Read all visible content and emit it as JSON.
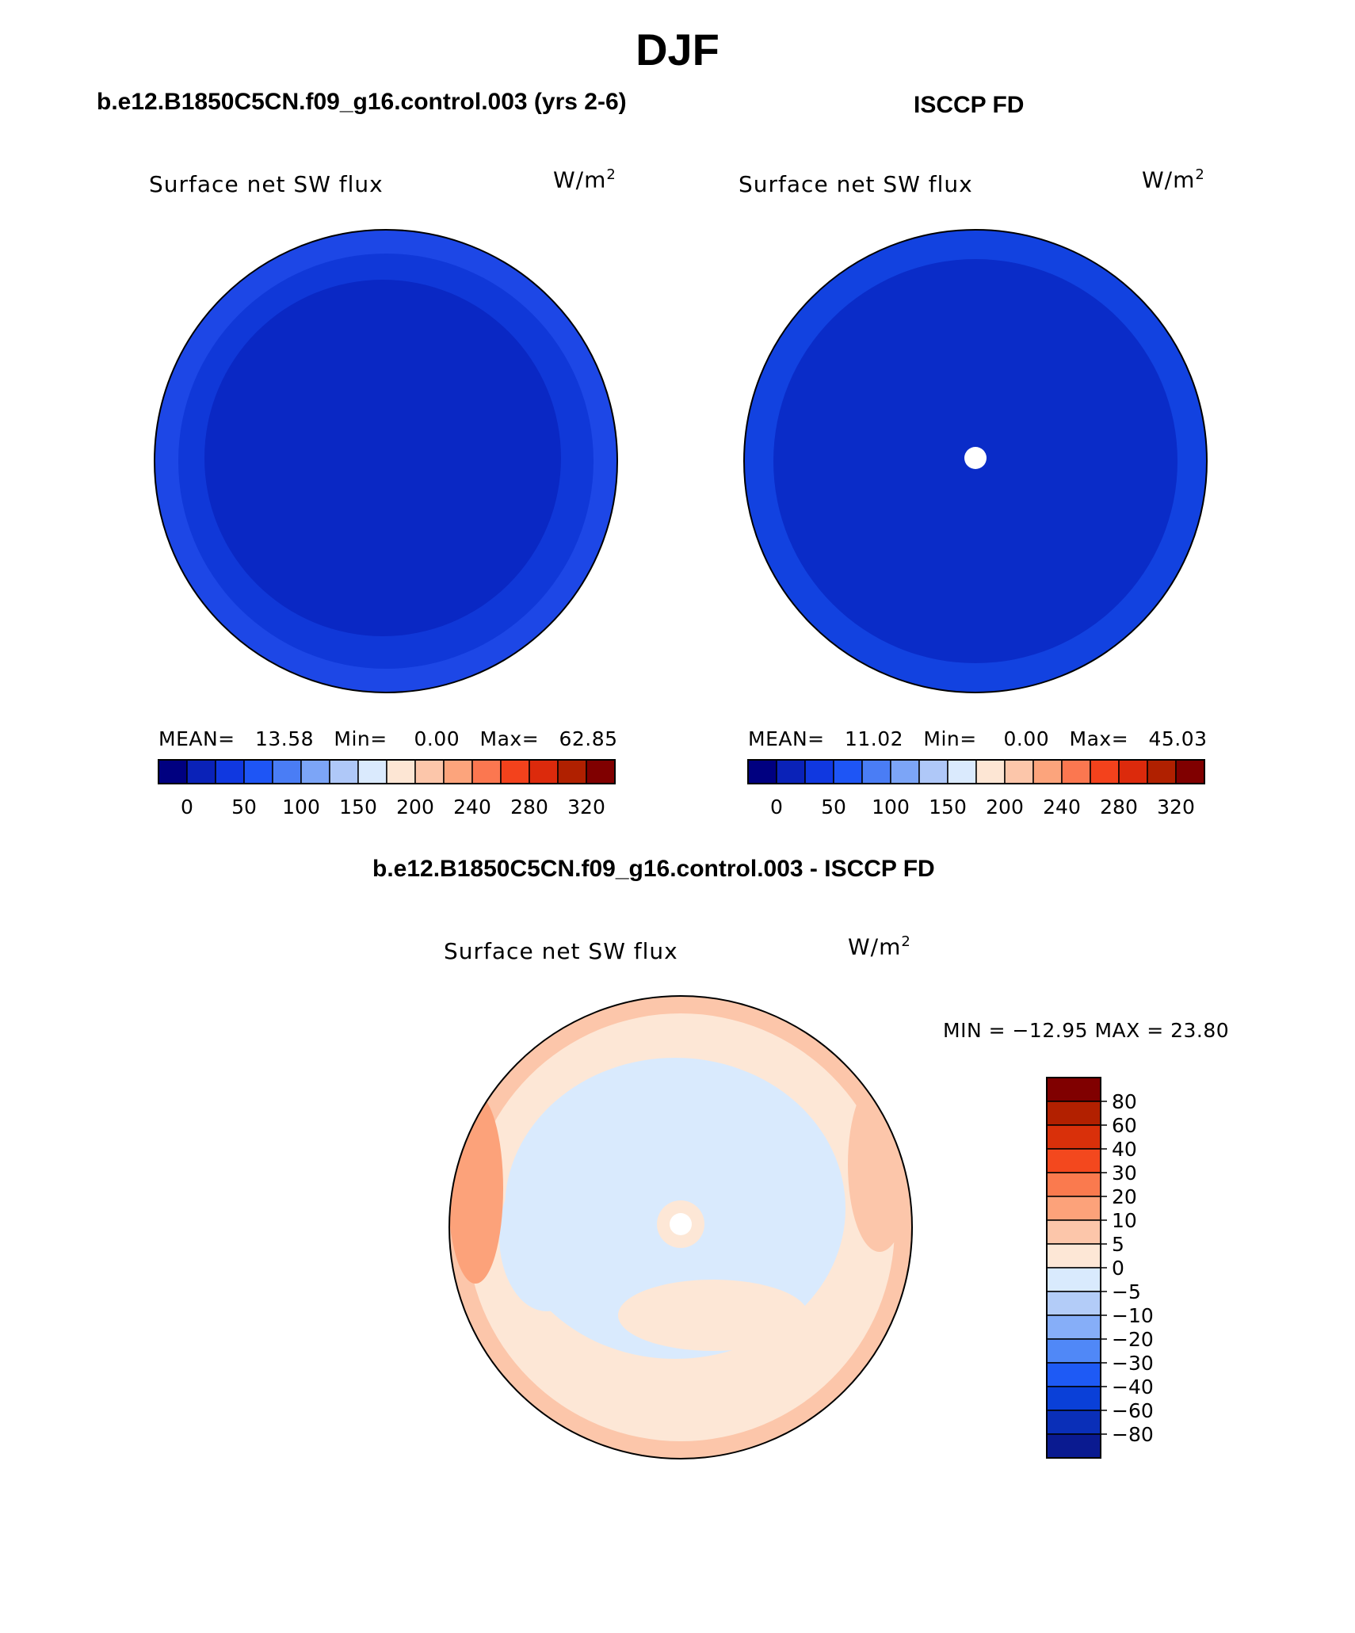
{
  "figure": {
    "season": "DJF",
    "left_title": "b.e12.B1850C5CN.f09_g16.control.003 (yrs 2-6)",
    "right_title": "ISCCP FD",
    "diff_title": "b.e12.B1850C5CN.f09_g16.control.003 - ISCCP FD"
  },
  "colors": {
    "abs_scale": [
      "#000080",
      "#0a22b8",
      "#1038e0",
      "#1e55f5",
      "#4a7df5",
      "#7ca5f7",
      "#afc8f8",
      "#daeafd",
      "#fde6d4",
      "#fcc6aa",
      "#fca47c",
      "#fb7750",
      "#f3421c",
      "#dc2a0c",
      "#b02000",
      "#800000"
    ],
    "diff_scale": [
      "#0a1a90",
      "#0a2fb8",
      "#0a40d8",
      "#1e5af5",
      "#5088f7",
      "#86aef8",
      "#b3ccf8",
      "#d9eafd",
      "#fde7d6",
      "#fcc6aa",
      "#fca27a",
      "#fa7a4e",
      "#f3481e",
      "#d9300a",
      "#b22000",
      "#800000"
    ],
    "map_model_outer": "#1d47e6",
    "map_model_mid": "#1038d8",
    "map_model_inner": "#0a28c4",
    "map_obs_outer": "#1242e0",
    "map_obs_inner": "#0a2cc8",
    "diff_land": "#d9eafd",
    "diff_warm": "#fde7d6",
    "diff_warmer": "#fcc6aa",
    "diff_warmest": "#fca27a"
  },
  "chart_data": [
    {
      "type": "heatmap",
      "panel": "model",
      "title": "b.e12.B1850C5CN.f09_g16.control.003 (yrs 2-6)",
      "variable": "Surface net SW flux",
      "units": "W/m",
      "units_sup": "2",
      "stats": {
        "mean_label": "MEAN=",
        "mean": "13.58",
        "min_label": "Min=",
        "min": "0.00",
        "max_label": "Max=",
        "max": "62.85"
      },
      "levels": [
        "0",
        "50",
        "100",
        "150",
        "200",
        "240",
        "280",
        "320"
      ],
      "projection": "north polar stereographic"
    },
    {
      "type": "heatmap",
      "panel": "observations",
      "title": "ISCCP FD",
      "variable": "Surface net SW flux",
      "units": "W/m",
      "units_sup": "2",
      "stats": {
        "mean_label": "MEAN=",
        "mean": "11.02",
        "min_label": "Min=",
        "min": "0.00",
        "max_label": "Max=",
        "max": "45.03"
      },
      "levels": [
        "0",
        "50",
        "100",
        "150",
        "200",
        "240",
        "280",
        "320"
      ],
      "projection": "north polar stereographic"
    },
    {
      "type": "heatmap",
      "panel": "difference",
      "title": "b.e12.B1850C5CN.f09_g16.control.003 - ISCCP FD",
      "variable": "Surface net SW flux",
      "units": "W/m",
      "units_sup": "2",
      "stats_text": "MIN = −12.95 MAX =  23.80",
      "stats": {
        "min": -12.95,
        "max": 23.8
      },
      "levels": [
        "80",
        "60",
        "40",
        "30",
        "20",
        "10",
        "5",
        "0",
        "−5",
        "−10",
        "−20",
        "−30",
        "−40",
        "−60",
        "−80"
      ],
      "projection": "north polar stereographic"
    }
  ]
}
